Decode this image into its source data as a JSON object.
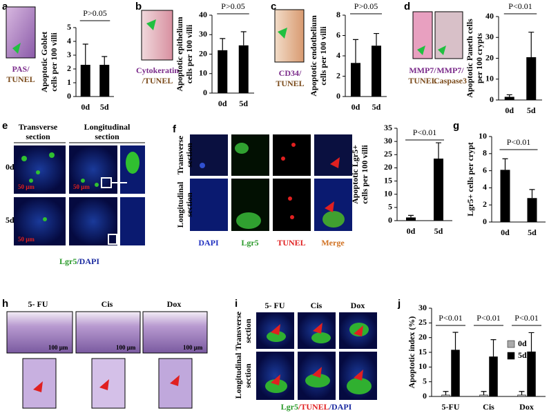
{
  "chart_data": [
    {
      "type": "bar",
      "y_label": [
        "Apoptotic Goblet",
        "cells per 100 villi"
      ],
      "categories": [
        "0d",
        "5d"
      ],
      "values": [
        2.3,
        2.3
      ],
      "errors": [
        1.5,
        0.6
      ],
      "ylim": [
        0,
        5
      ],
      "yticks": [
        0,
        1,
        2,
        3,
        4,
        5
      ],
      "annotations": [
        "P>0.05"
      ]
    },
    {
      "type": "bar",
      "y_label": [
        "Apoptotic epithelium",
        "cells per 100 villi"
      ],
      "categories": [
        "0d",
        "5d"
      ],
      "values": [
        22,
        24.5
      ],
      "errors": [
        6,
        7
      ],
      "ylim": [
        0,
        40
      ],
      "yticks": [
        0,
        10,
        20,
        30,
        40
      ],
      "annotations": [
        "P>0.05"
      ]
    },
    {
      "type": "bar",
      "y_label": [
        "Apoptotic endothelium",
        "cells per 100 villi"
      ],
      "categories": [
        "0d",
        "5d"
      ],
      "values": [
        3.3,
        5.0
      ],
      "errors": [
        2.3,
        1.2
      ],
      "ylim": [
        0,
        8
      ],
      "yticks": [
        0,
        2,
        4,
        6,
        8
      ],
      "annotations": [
        "P>0.05"
      ]
    },
    {
      "type": "bar",
      "y_label": [
        "Apoptotic Paneth cells",
        "per 100 crypts"
      ],
      "categories": [
        "0d",
        "5d"
      ],
      "values": [
        1.5,
        20.5
      ],
      "errors": [
        1,
        12
      ],
      "ylim": [
        0,
        40
      ],
      "yticks": [
        0,
        10,
        20,
        30,
        40
      ],
      "annotations": [
        "P<0.01"
      ]
    },
    {
      "type": "bar",
      "y_label": [
        "Apoptotic Lgr5+",
        "cells per 100 villi"
      ],
      "categories": [
        "0d",
        "5d"
      ],
      "values": [
        1.2,
        23.5
      ],
      "errors": [
        0.8,
        6
      ],
      "ylim": [
        0,
        35
      ],
      "yticks": [
        0,
        5,
        10,
        15,
        20,
        25,
        30,
        35
      ],
      "annotations": [
        "P<0.01"
      ]
    },
    {
      "type": "bar",
      "y_label": [
        "Lgr5+ cells per crypt"
      ],
      "categories": [
        "0d",
        "5d"
      ],
      "values": [
        6.1,
        2.8
      ],
      "errors": [
        1.3,
        1.0
      ],
      "ylim": [
        0,
        10
      ],
      "yticks": [
        0,
        2,
        4,
        6,
        8,
        10
      ],
      "annotations": [
        "P<0.01"
      ]
    },
    {
      "type": "grouped_bar",
      "y_label": [
        "Apoptotic index (%)"
      ],
      "categories": [
        "5-FU",
        "Cis",
        "Dox"
      ],
      "series": [
        {
          "name": "0d",
          "color": "#aaaaaa",
          "values": [
            0.5,
            0.5,
            0.5
          ],
          "errors": [
            1.2,
            1.2,
            1.2
          ]
        },
        {
          "name": "5d",
          "color": "#000000",
          "values": [
            15.8,
            13.5,
            15.2
          ],
          "errors": [
            6,
            5.8,
            6.5
          ]
        }
      ],
      "ylim": [
        0,
        30
      ],
      "yticks": [
        0,
        5,
        10,
        15,
        20,
        25,
        30
      ],
      "annotations": [
        "P<0.01",
        "P<0.01",
        "P<0.01"
      ],
      "legend": "right"
    }
  ],
  "panel_labels": [
    "a",
    "b",
    "c",
    "d",
    "e",
    "f",
    "g",
    "h",
    "i",
    "j"
  ],
  "captions": {
    "a": [
      "PAS/",
      "TUNEL"
    ],
    "b": [
      "Cytokeratin",
      "/TUNEL"
    ],
    "c": [
      "CD34/",
      "TUNEL"
    ],
    "d1": [
      "MMP7/",
      "TUNEL"
    ],
    "d2": [
      "MMP7/",
      "Caspase3"
    ]
  },
  "e": {
    "headers": [
      [
        "Transverse",
        "section"
      ],
      [
        "Longitudinal",
        "section"
      ]
    ],
    "rows": [
      "0d",
      "5d"
    ],
    "scale": "50 μm",
    "stain": [
      "Lgr5",
      "/DAPI"
    ]
  },
  "f": {
    "rows": [
      [
        "Transverse",
        "section"
      ],
      [
        "Longitudinal",
        "section"
      ]
    ],
    "channels": [
      "DAPI",
      "Lgr5",
      "TUNEL",
      "Merge"
    ]
  },
  "h": {
    "drugs": [
      "5- FU",
      "Cis",
      "Dox"
    ],
    "scale": "100 μm"
  },
  "i": {
    "drugs": [
      "5- FU",
      "Cis",
      "Dox"
    ],
    "rows": [
      [
        "Transverse",
        "section"
      ],
      [
        "Longitudinal",
        "section"
      ]
    ],
    "stain": [
      "Lgr5",
      "/TUNEL",
      "/DAPI"
    ]
  }
}
